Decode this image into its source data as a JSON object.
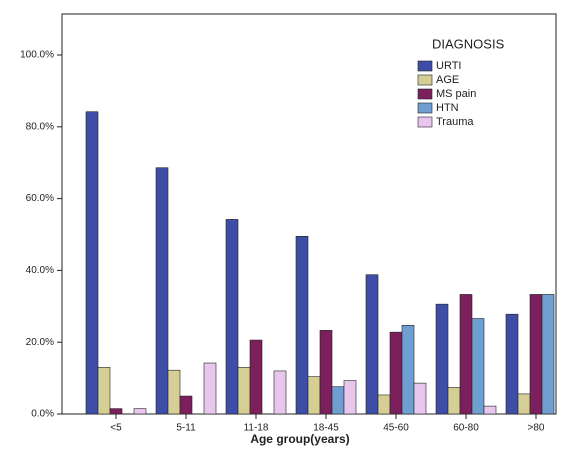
{
  "chart_data": {
    "type": "bar",
    "x_label": "Age group(years)",
    "legend_title": "DIAGNOSIS",
    "legend_position": "upper right",
    "grid": false,
    "categories": [
      "<5",
      "5-11",
      "11-18",
      "18-45",
      "45-60",
      "60-80",
      ">80"
    ],
    "series": [
      {
        "name": "URTI",
        "color": "#3e4ea6",
        "values": [
          84.2,
          68.6,
          54.2,
          49.5,
          38.8,
          30.6,
          27.8
        ]
      },
      {
        "name": "AGE",
        "color": "#d5cf95",
        "values": [
          13.0,
          12.2,
          13.0,
          10.4,
          5.3,
          7.4,
          5.6
        ]
      },
      {
        "name": "MS pain",
        "color": "#7b1f5d",
        "values": [
          1.5,
          5.0,
          20.6,
          23.3,
          22.8,
          33.3,
          33.3
        ]
      },
      {
        "name": "HTN",
        "color": "#6e9fd0",
        "values": [
          0,
          0,
          0,
          7.6,
          24.7,
          26.6,
          33.3
        ]
      },
      {
        "name": "Trauma",
        "color": "#e9c6ed",
        "values": [
          1.5,
          14.2,
          12.0,
          9.3,
          8.6,
          2.2,
          0
        ]
      }
    ],
    "ylim": [
      0,
      100
    ],
    "yticks": [
      {
        "value": 0,
        "label": "0.0%"
      },
      {
        "value": 20,
        "label": "20.0%"
      },
      {
        "value": 40,
        "label": "40.0%"
      },
      {
        "value": 60,
        "label": "60.0%"
      },
      {
        "value": 80,
        "label": "80.0%"
      },
      {
        "value": 100,
        "label": "100.0%"
      }
    ]
  }
}
